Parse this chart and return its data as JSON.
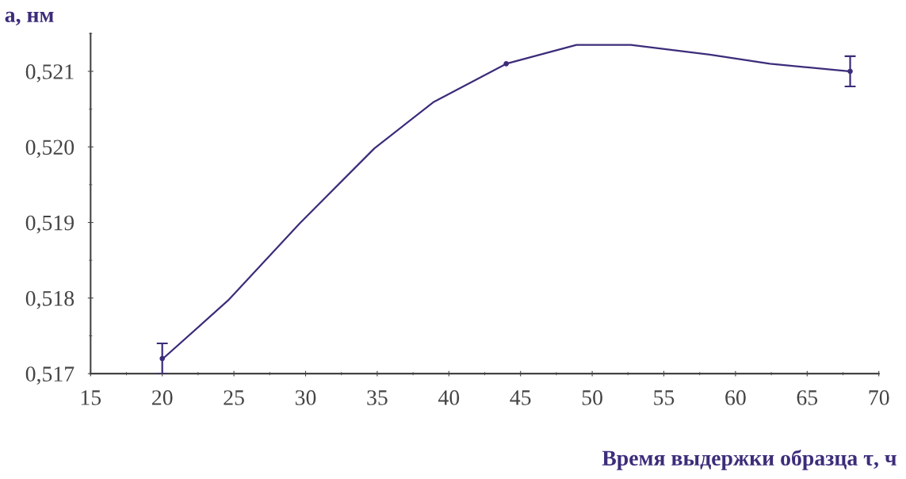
{
  "chart_data": {
    "type": "line",
    "xlabel": "Время выдержки образца τ, ч",
    "ylabel": "a, нм",
    "xlim": [
      15,
      70
    ],
    "xticks": [
      15,
      20,
      25,
      30,
      35,
      40,
      45,
      50,
      55,
      60,
      65,
      70
    ],
    "ylim": [
      0.517,
      0.5215
    ],
    "yticks": [
      {
        "value": 0.517,
        "label": "0,517"
      },
      {
        "value": 0.518,
        "label": "0,518"
      },
      {
        "value": 0.519,
        "label": "0,519"
      },
      {
        "value": 0.52,
        "label": "0,520"
      },
      {
        "value": 0.521,
        "label": "0,521"
      }
    ],
    "grid": false,
    "series": [
      {
        "color": "#3d2c7a",
        "x": [
          20,
          24.6,
          29.6,
          34.8,
          38.9,
          44,
          48.9,
          52.7,
          58.2,
          62.4,
          68
        ],
        "values": [
          0.51719,
          0.51797,
          0.51899,
          0.51998,
          0.52059,
          0.5211,
          0.52135,
          0.52135,
          0.52122,
          0.5211,
          0.521
        ]
      },
      {
        "type": "scatter",
        "color": "#3d2c7a",
        "marker": "circle",
        "x": [
          20,
          44,
          68
        ],
        "values": [
          0.5172,
          0.5211,
          0.521
        ],
        "errors": [
          0.0002,
          null,
          0.0002
        ]
      }
    ]
  }
}
